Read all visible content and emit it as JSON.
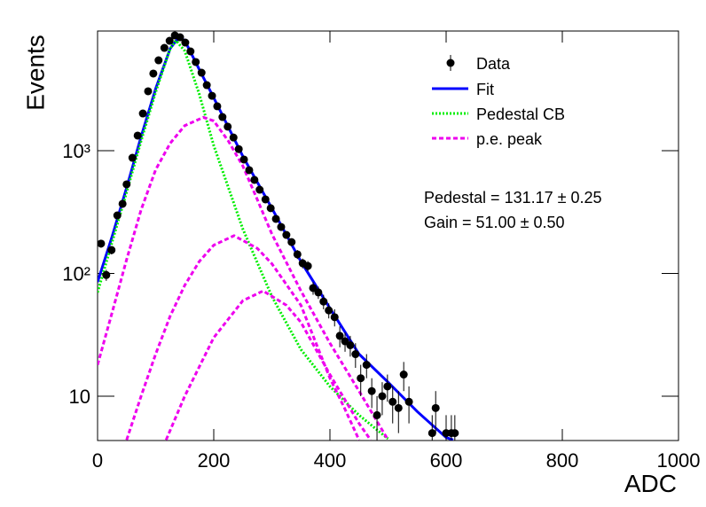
{
  "chart_data": {
    "type": "log-fit",
    "xlabel": "ADC",
    "ylabel": "Events",
    "xlim": [
      0,
      1000
    ],
    "ylim": [
      4.35,
      9440
    ],
    "log_y": true,
    "xticks": [
      0,
      200,
      400,
      600,
      800,
      1000
    ],
    "yticks": [
      {
        "value": 10,
        "label": "10"
      },
      {
        "value": 100,
        "label": "10²"
      },
      {
        "value": 1000,
        "label": "10³"
      }
    ],
    "annotations": [
      "Pedestal = 131.17 ± 0.25",
      "Gain = 51.00 ± 0.50"
    ],
    "points": {
      "name": "Data",
      "color": "#000000",
      "x": [
        6,
        15,
        24,
        34,
        43,
        50,
        60,
        69,
        78,
        87,
        96,
        105,
        115,
        124,
        133,
        142,
        151,
        160,
        169,
        179,
        188,
        197,
        206,
        215,
        224,
        234,
        243,
        252,
        261,
        270,
        279,
        289,
        298,
        307,
        316,
        325,
        334,
        344,
        353,
        362,
        371,
        380,
        389,
        398,
        408,
        417,
        426,
        435,
        444,
        453,
        463,
        472,
        481,
        490,
        499,
        508,
        518,
        527,
        536,
        576,
        582,
        600,
        609,
        615
      ],
      "values": [
        175,
        97,
        155,
        297,
        369,
        532,
        875,
        1327,
        2010,
        3050,
        4250,
        5450,
        6880,
        7860,
        8690,
        8400,
        7600,
        6440,
        5280,
        4320,
        3420,
        2800,
        2300,
        1880,
        1570,
        1280,
        1030,
        847,
        694,
        578,
        481,
        401,
        340,
        278,
        239,
        206,
        180,
        143,
        121,
        115,
        76,
        70,
        59,
        50,
        44,
        31,
        28,
        26,
        22,
        14,
        18,
        11,
        7,
        10,
        12,
        9,
        8,
        15,
        9,
        5,
        8,
        5,
        5,
        5
      ],
      "errors": [
        13,
        10,
        12,
        17,
        19,
        23,
        30,
        36,
        45,
        55,
        65,
        74,
        83,
        89,
        93,
        92,
        87,
        80,
        73,
        66,
        58,
        53,
        48,
        43,
        40,
        36,
        32,
        29,
        26,
        24,
        22,
        20,
        18,
        17,
        15,
        14,
        13,
        12,
        11,
        11,
        9,
        8,
        8,
        7,
        7,
        6,
        5,
        5,
        5,
        4,
        4,
        3,
        3,
        3,
        3,
        3,
        3,
        4,
        3,
        2,
        3,
        2,
        2,
        2
      ]
    },
    "series": [
      {
        "name": "Fit",
        "color": "#0000ff",
        "dash": "solid",
        "components": [
          {
            "x": [
              0,
              25,
              50,
              75,
              100,
              125,
              140,
              150,
              175,
              200,
              250,
              300,
              350,
              400,
              450,
              500,
              550,
              600,
              612
            ],
            "values": [
              85,
              200,
              500,
              1300,
              3200,
              6800,
              8400,
              7900,
              4600,
              2700,
              900,
              340,
              125,
              52,
              22,
              13,
              7.5,
              4.6,
              4.4
            ]
          }
        ]
      },
      {
        "name": "Pedestal CB",
        "color": "#00ee00",
        "dash": "dot",
        "components": [
          {
            "x": [
              0,
              25,
              50,
              75,
              100,
              125,
              135,
              150,
              175,
              200,
              250,
              300,
              350,
              400,
              450,
              500
            ],
            "values": [
              70,
              180,
              460,
              1200,
              3000,
              6800,
              7900,
              6500,
              2900,
              1100,
              230,
              65,
              24,
              12,
              7,
              4.5
            ]
          }
        ]
      },
      {
        "name": "p.e. peak",
        "color": "#ee00ee",
        "dash": "dash",
        "components": [
          {
            "x": [
              0,
              25,
              50,
              75,
              100,
              125,
              150,
              182,
              200,
              225,
              250,
              275,
              300,
              350,
              400,
              450,
              500
            ],
            "values": [
              18,
              48,
              130,
              330,
              700,
              1150,
              1600,
              1870,
              1750,
              1200,
              750,
              400,
              210,
              72,
              27,
              11,
              4.4
            ]
          },
          {
            "x": [
              50,
              75,
              100,
              125,
              150,
              175,
              200,
              235,
              275,
              300,
              350,
              400,
              425,
              450
            ],
            "values": [
              4.4,
              10,
              22,
              45,
              80,
              125,
              170,
              203,
              160,
              120,
              55,
              14,
              8,
              4.4
            ]
          },
          {
            "x": [
              118,
              150,
              200,
              250,
              285,
              325,
              350,
              400,
              450,
              470
            ],
            "values": [
              4.4,
              10,
              30,
              60,
              72,
              55,
              40,
              15,
              6,
              4.4
            ]
          }
        ]
      }
    ]
  }
}
